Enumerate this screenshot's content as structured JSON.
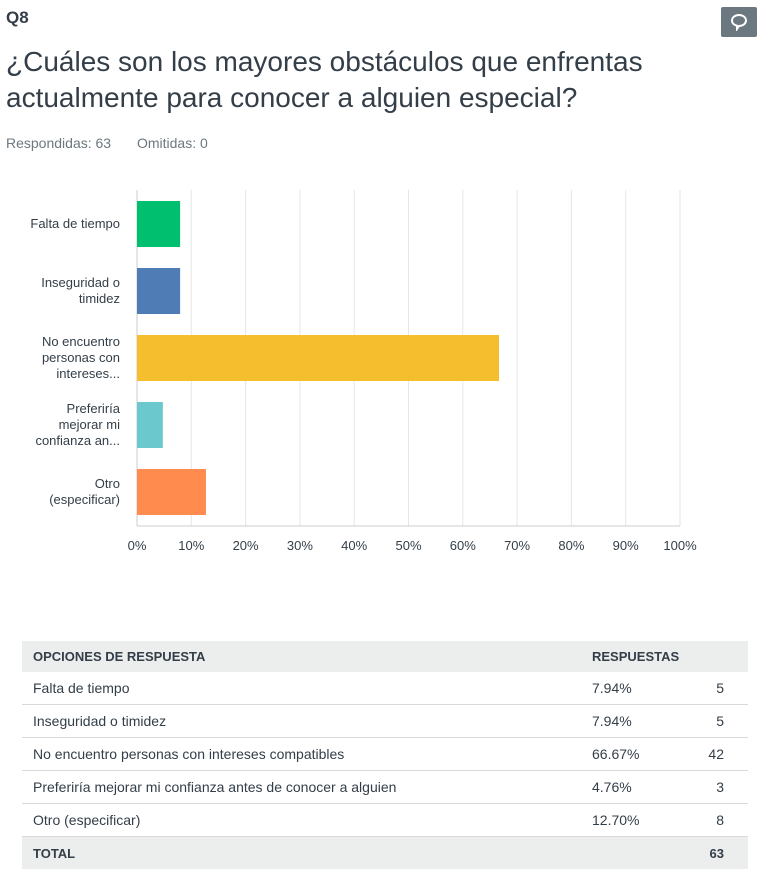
{
  "question": {
    "number": "Q8",
    "title": "¿Cuáles son los mayores obstáculos que enfrentas actualmente para conocer a alguien especial?",
    "answered": "Respondidas: 63",
    "skipped": "Omitidas: 0",
    "comment_icon": "speech-bubble-icon"
  },
  "chart_data": {
    "type": "bar",
    "orientation": "horizontal",
    "categories": [
      "Falta de tiempo",
      "Inseguridad o timidez",
      "No encuentro personas con intereses...",
      "Preferiría mejorar mi confianza an...",
      "Otro (especificar)"
    ],
    "category_lines": [
      [
        "Falta de tiempo"
      ],
      [
        "Inseguridad o",
        "timidez"
      ],
      [
        "No encuentro",
        "personas con",
        "intereses..."
      ],
      [
        "Preferiría",
        "mejorar mi",
        "confianza an..."
      ],
      [
        "Otro",
        "(especificar)"
      ]
    ],
    "values": [
      7.94,
      7.94,
      66.67,
      4.76,
      12.7
    ],
    "colors": [
      "#00bf6f",
      "#507cb6",
      "#f5be2f",
      "#6bc8cd",
      "#ff8b4f"
    ],
    "xlim": [
      0,
      100
    ],
    "xticks": [
      "0%",
      "10%",
      "20%",
      "30%",
      "40%",
      "50%",
      "60%",
      "70%",
      "80%",
      "90%",
      "100%"
    ],
    "grid": true,
    "xlabel": "",
    "ylabel": "",
    "title": ""
  },
  "table": {
    "headers": [
      "OPCIONES DE RESPUESTA",
      "RESPUESTAS",
      ""
    ],
    "rows": [
      {
        "label": "Falta de tiempo",
        "pct": "7.94%",
        "count": "5"
      },
      {
        "label": "Inseguridad o timidez",
        "pct": "7.94%",
        "count": "5"
      },
      {
        "label": "No encuentro personas con intereses compatibles",
        "pct": "66.67%",
        "count": "42"
      },
      {
        "label": "Preferiría mejorar mi confianza antes de conocer a alguien",
        "pct": "4.76%",
        "count": "3"
      },
      {
        "label": "Otro (especificar)",
        "pct": "12.70%",
        "count": "8"
      }
    ],
    "total_label": "TOTAL",
    "total_count": "63"
  }
}
